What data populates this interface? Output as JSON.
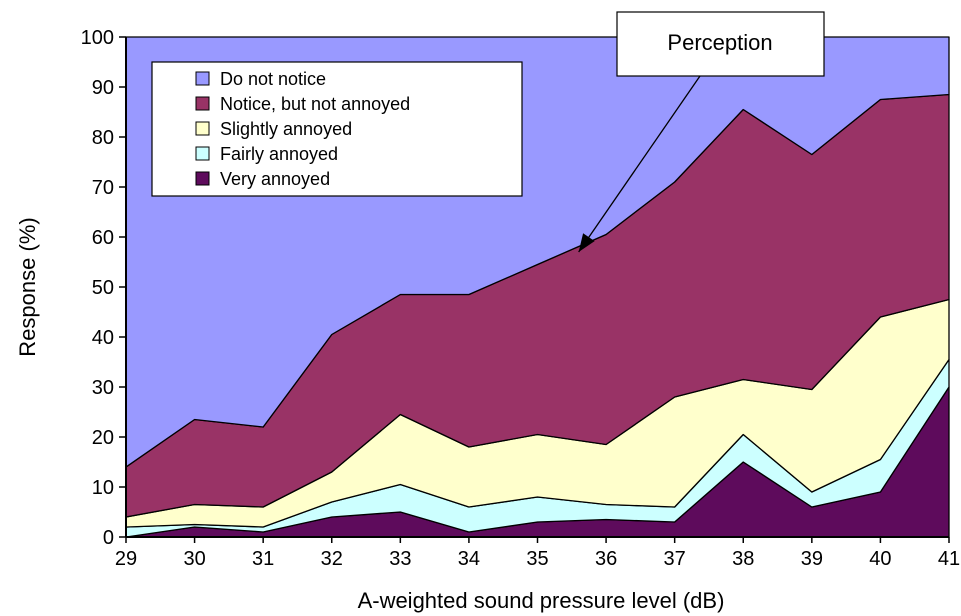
{
  "chart_data": {
    "type": "area",
    "stacked": true,
    "title": "",
    "xlabel": "A-weighted sound pressure level (dB)",
    "ylabel": "Response (%)",
    "x": [
      29,
      30,
      31,
      32,
      33,
      34,
      35,
      36,
      37,
      38,
      39,
      40,
      41
    ],
    "ylim": [
      0,
      100
    ],
    "yticks": [
      0,
      10,
      20,
      30,
      40,
      50,
      60,
      70,
      80,
      90,
      100
    ],
    "grid": false,
    "legend_position": "top-left",
    "series": [
      {
        "name": "Very annoyed",
        "color": "#5e0b5c",
        "values": [
          0,
          2,
          1,
          4,
          5,
          1,
          3,
          3.5,
          3,
          15,
          6,
          9,
          30
        ]
      },
      {
        "name": "Fairly annoyed",
        "color": "#ccffff",
        "values": [
          2,
          0.5,
          1,
          3,
          5.5,
          5,
          5,
          3,
          3,
          5.5,
          3,
          6.5,
          5.5
        ]
      },
      {
        "name": "Slightly annoyed",
        "color": "#ffffcc",
        "values": [
          2,
          4,
          4,
          6,
          14,
          12,
          12.5,
          12,
          22,
          11,
          20.5,
          28.5,
          12
        ]
      },
      {
        "name": "Notice, but not annoyed",
        "color": "#993366",
        "values": [
          10,
          17,
          16,
          27.5,
          24,
          30.5,
          34,
          42,
          43,
          54,
          47,
          43.5,
          41
        ]
      },
      {
        "name": "Do not notice",
        "color": "#9999ff",
        "values": [
          86,
          76.5,
          78,
          59.5,
          51.5,
          51.5,
          45.5,
          39.5,
          29,
          14.5,
          23.5,
          12.5,
          11.5
        ]
      }
    ],
    "annotation": {
      "text": "Perception",
      "arrow_target": {
        "x": 35.6,
        "y": 57
      }
    }
  }
}
